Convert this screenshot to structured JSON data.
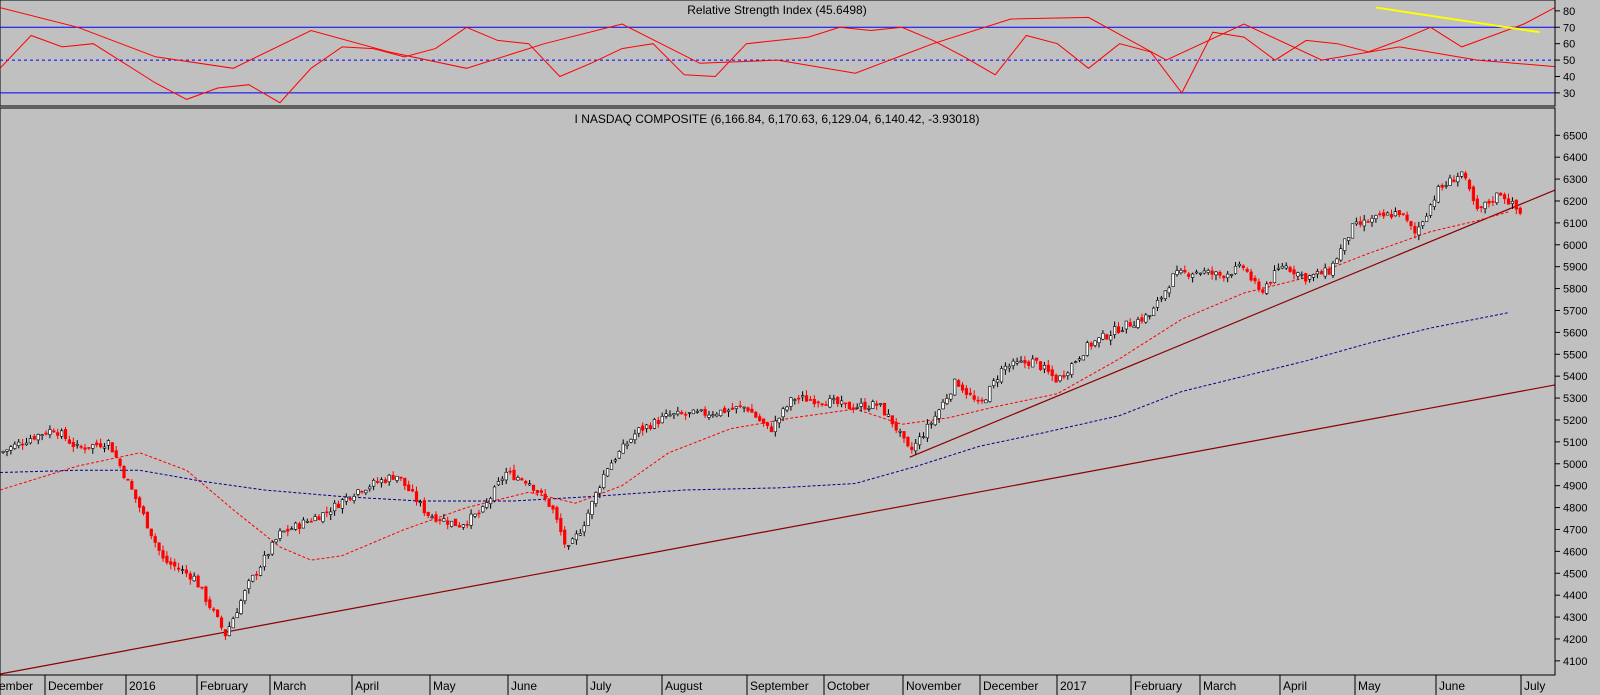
{
  "chart_data": [
    {
      "type": "line",
      "title": "Relative Strength Index (45.6498)",
      "ylim": [
        22,
        86
      ],
      "yticks": [
        30,
        40,
        50,
        60,
        70,
        80
      ],
      "reference_lines": [
        {
          "value": 70,
          "style": "solid",
          "color": "#0000ff"
        },
        {
          "value": 50,
          "style": "dashed",
          "color": "#0000ff"
        },
        {
          "value": 30,
          "style": "solid",
          "color": "#0000ff"
        }
      ],
      "series": [
        {
          "color": "#ff0000",
          "x": [
            0,
            0.02,
            0.04,
            0.06,
            0.08,
            0.1,
            0.12,
            0.14,
            0.16,
            0.18,
            0.2,
            0.22,
            0.24,
            0.26,
            0.28,
            0.3,
            0.32,
            0.34,
            0.36,
            0.38,
            0.4,
            0.42,
            0.44,
            0.46,
            0.48,
            0.5,
            0.52,
            0.54,
            0.56,
            0.58,
            0.6,
            0.62,
            0.64,
            0.66,
            0.68,
            0.7,
            0.72,
            0.74,
            0.76,
            0.78,
            0.8,
            0.82,
            0.84,
            0.86,
            0.88,
            0.9,
            0.92,
            0.94,
            0.96,
            0.98,
            1
          ],
          "values": [
            45,
            65,
            58,
            60,
            48,
            36,
            26,
            33,
            35,
            24,
            45,
            58,
            57,
            52,
            57,
            70,
            62,
            60,
            40,
            48,
            57,
            60,
            41,
            40,
            60,
            62,
            64,
            70,
            68,
            70,
            62,
            52,
            41,
            65,
            60,
            45,
            60,
            55,
            30,
            67,
            64,
            50,
            62,
            60,
            55,
            62,
            70,
            58,
            65,
            72,
            82
          ]
        },
        {
          "color": "#ff0000",
          "x": [
            0,
            0.05,
            0.1,
            0.15,
            0.2,
            0.25,
            0.3,
            0.35,
            0.4,
            0.45,
            0.5,
            0.55,
            0.6,
            0.65,
            0.7,
            0.75,
            0.8,
            0.85,
            0.9,
            0.95,
            1
          ],
          "values": [
            82,
            70,
            52,
            45,
            68,
            55,
            45,
            60,
            72,
            48,
            50,
            42,
            60,
            75,
            76,
            50,
            72,
            50,
            58,
            50,
            46
          ]
        }
      ],
      "trendlines": [
        {
          "color": "#ffff00",
          "from": {
            "x_frac": 0.885,
            "y": 82
          },
          "to": {
            "x_frac": 0.99,
            "y": 67
          }
        }
      ]
    },
    {
      "type": "candlestick",
      "title": "I NASDAQ COMPOSITE (6,166.84, 6,170.63, 6,129.04, 6,140.42, -3.93018)",
      "ylim": [
        4040,
        6620
      ],
      "yticks": [
        4100,
        4200,
        4300,
        4400,
        4500,
        4600,
        4700,
        4800,
        4900,
        5000,
        5100,
        5200,
        5300,
        5400,
        5500,
        5600,
        5700,
        5800,
        5900,
        6000,
        6100,
        6200,
        6300,
        6400,
        6500
      ],
      "x_tick_labels": [
        "ember",
        "December",
        "2016",
        "February",
        "March",
        "April",
        "May",
        "June",
        "July",
        "August",
        "September",
        "October",
        "November",
        "December",
        "2017",
        "February",
        "March",
        "April",
        "May",
        "June",
        "July"
      ],
      "price_path": [
        {
          "x_frac": 0.0,
          "close": 5050
        },
        {
          "x_frac": 0.02,
          "close": 5120
        },
        {
          "x_frac": 0.035,
          "close": 5160
        },
        {
          "x_frac": 0.05,
          "close": 5070
        },
        {
          "x_frac": 0.07,
          "close": 5100
        },
        {
          "x_frac": 0.09,
          "close": 4800
        },
        {
          "x_frac": 0.105,
          "close": 4560
        },
        {
          "x_frac": 0.125,
          "close": 4480
        },
        {
          "x_frac": 0.145,
          "close": 4220
        },
        {
          "x_frac": 0.16,
          "close": 4450
        },
        {
          "x_frac": 0.18,
          "close": 4680
        },
        {
          "x_frac": 0.21,
          "close": 4780
        },
        {
          "x_frac": 0.23,
          "close": 4880
        },
        {
          "x_frac": 0.255,
          "close": 4950
        },
        {
          "x_frac": 0.275,
          "close": 4770
        },
        {
          "x_frac": 0.295,
          "close": 4720
        },
        {
          "x_frac": 0.31,
          "close": 4780
        },
        {
          "x_frac": 0.325,
          "close": 4960
        },
        {
          "x_frac": 0.34,
          "close": 4920
        },
        {
          "x_frac": 0.355,
          "close": 4800
        },
        {
          "x_frac": 0.365,
          "close": 4600
        },
        {
          "x_frac": 0.375,
          "close": 4720
        },
        {
          "x_frac": 0.39,
          "close": 4980
        },
        {
          "x_frac": 0.41,
          "close": 5150
        },
        {
          "x_frac": 0.43,
          "close": 5220
        },
        {
          "x_frac": 0.455,
          "close": 5230
        },
        {
          "x_frac": 0.48,
          "close": 5260
        },
        {
          "x_frac": 0.495,
          "close": 5150
        },
        {
          "x_frac": 0.51,
          "close": 5300
        },
        {
          "x_frac": 0.53,
          "close": 5290
        },
        {
          "x_frac": 0.545,
          "close": 5260
        },
        {
          "x_frac": 0.565,
          "close": 5270
        },
        {
          "x_frac": 0.575,
          "close": 5180
        },
        {
          "x_frac": 0.585,
          "close": 5050
        },
        {
          "x_frac": 0.6,
          "close": 5200
        },
        {
          "x_frac": 0.615,
          "close": 5380
        },
        {
          "x_frac": 0.63,
          "close": 5260
        },
        {
          "x_frac": 0.645,
          "close": 5440
        },
        {
          "x_frac": 0.665,
          "close": 5470
        },
        {
          "x_frac": 0.68,
          "close": 5380
        },
        {
          "x_frac": 0.7,
          "close": 5540
        },
        {
          "x_frac": 0.72,
          "close": 5620
        },
        {
          "x_frac": 0.74,
          "close": 5680
        },
        {
          "x_frac": 0.755,
          "close": 5860
        },
        {
          "x_frac": 0.77,
          "close": 5880
        },
        {
          "x_frac": 0.785,
          "close": 5860
        },
        {
          "x_frac": 0.8,
          "close": 5900
        },
        {
          "x_frac": 0.81,
          "close": 5780
        },
        {
          "x_frac": 0.825,
          "close": 5910
        },
        {
          "x_frac": 0.84,
          "close": 5850
        },
        {
          "x_frac": 0.855,
          "close": 5880
        },
        {
          "x_frac": 0.87,
          "close": 6080
        },
        {
          "x_frac": 0.885,
          "close": 6120
        },
        {
          "x_frac": 0.9,
          "close": 6150
        },
        {
          "x_frac": 0.91,
          "close": 6050
        },
        {
          "x_frac": 0.925,
          "close": 6250
        },
        {
          "x_frac": 0.94,
          "close": 6330
        },
        {
          "x_frac": 0.95,
          "close": 6150
        },
        {
          "x_frac": 0.965,
          "close": 6240
        },
        {
          "x_frac": 0.978,
          "close": 6140
        }
      ],
      "moving_averages": [
        {
          "color": "#ff0000",
          "style": "dashed",
          "points": [
            {
              "x_frac": 0.0,
              "y": 4880
            },
            {
              "x_frac": 0.05,
              "y": 4990
            },
            {
              "x_frac": 0.09,
              "y": 5050
            },
            {
              "x_frac": 0.12,
              "y": 4970
            },
            {
              "x_frac": 0.15,
              "y": 4790
            },
            {
              "x_frac": 0.18,
              "y": 4620
            },
            {
              "x_frac": 0.2,
              "y": 4560
            },
            {
              "x_frac": 0.22,
              "y": 4580
            },
            {
              "x_frac": 0.26,
              "y": 4700
            },
            {
              "x_frac": 0.3,
              "y": 4800
            },
            {
              "x_frac": 0.34,
              "y": 4870
            },
            {
              "x_frac": 0.37,
              "y": 4820
            },
            {
              "x_frac": 0.4,
              "y": 4900
            },
            {
              "x_frac": 0.43,
              "y": 5050
            },
            {
              "x_frac": 0.47,
              "y": 5160
            },
            {
              "x_frac": 0.51,
              "y": 5210
            },
            {
              "x_frac": 0.55,
              "y": 5250
            },
            {
              "x_frac": 0.58,
              "y": 5180
            },
            {
              "x_frac": 0.61,
              "y": 5210
            },
            {
              "x_frac": 0.64,
              "y": 5260
            },
            {
              "x_frac": 0.68,
              "y": 5320
            },
            {
              "x_frac": 0.72,
              "y": 5480
            },
            {
              "x_frac": 0.76,
              "y": 5660
            },
            {
              "x_frac": 0.8,
              "y": 5780
            },
            {
              "x_frac": 0.84,
              "y": 5850
            },
            {
              "x_frac": 0.88,
              "y": 5960
            },
            {
              "x_frac": 0.92,
              "y": 6060
            },
            {
              "x_frac": 0.95,
              "y": 6110
            },
            {
              "x_frac": 0.97,
              "y": 6150
            }
          ]
        },
        {
          "color": "#00008b",
          "style": "dashed",
          "points": [
            {
              "x_frac": 0.0,
              "y": 4960
            },
            {
              "x_frac": 0.05,
              "y": 4970
            },
            {
              "x_frac": 0.09,
              "y": 4970
            },
            {
              "x_frac": 0.13,
              "y": 4920
            },
            {
              "x_frac": 0.17,
              "y": 4880
            },
            {
              "x_frac": 0.22,
              "y": 4850
            },
            {
              "x_frac": 0.27,
              "y": 4830
            },
            {
              "x_frac": 0.33,
              "y": 4830
            },
            {
              "x_frac": 0.38,
              "y": 4850
            },
            {
              "x_frac": 0.44,
              "y": 4880
            },
            {
              "x_frac": 0.5,
              "y": 4890
            },
            {
              "x_frac": 0.55,
              "y": 4910
            },
            {
              "x_frac": 0.59,
              "y": 4990
            },
            {
              "x_frac": 0.63,
              "y": 5080
            },
            {
              "x_frac": 0.67,
              "y": 5140
            },
            {
              "x_frac": 0.72,
              "y": 5220
            },
            {
              "x_frac": 0.76,
              "y": 5330
            },
            {
              "x_frac": 0.8,
              "y": 5400
            },
            {
              "x_frac": 0.84,
              "y": 5470
            },
            {
              "x_frac": 0.88,
              "y": 5550
            },
            {
              "x_frac": 0.92,
              "y": 5620
            },
            {
              "x_frac": 0.97,
              "y": 5690
            }
          ]
        }
      ],
      "trendlines": [
        {
          "color": "#8b0000",
          "from": {
            "x_frac": 0.0,
            "y": 4040
          },
          "to": {
            "x_frac": 1.0,
            "y": 5360
          }
        },
        {
          "color": "#8b0000",
          "from": {
            "x_frac": 0.585,
            "y": 5030
          },
          "to": {
            "x_frac": 1.0,
            "y": 6250
          }
        }
      ]
    }
  ]
}
